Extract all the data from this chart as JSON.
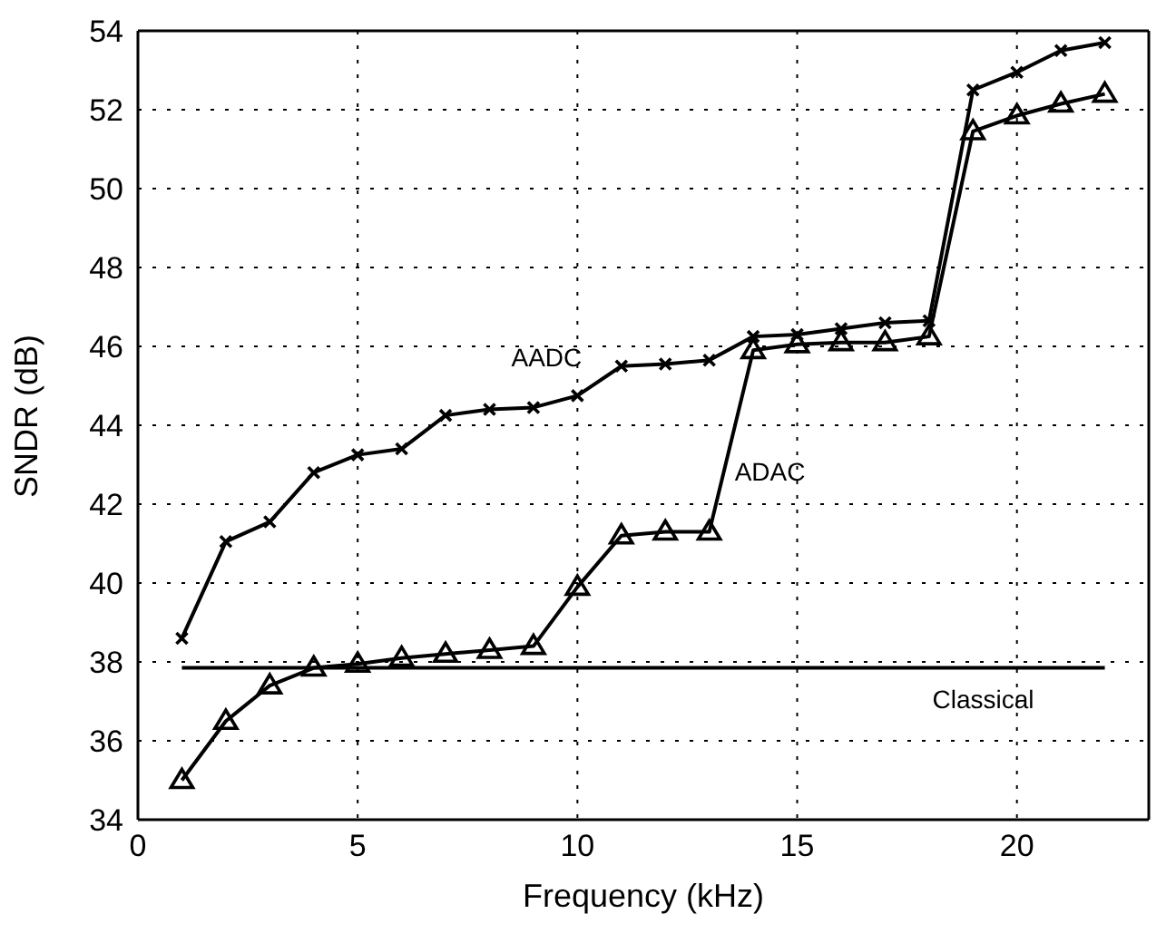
{
  "chart_data": {
    "type": "line",
    "xlabel": "Frequency (kHz)",
    "ylabel": "SNDR (dB)",
    "xlim": [
      0,
      23
    ],
    "xticks": [
      0,
      5,
      10,
      15,
      20
    ],
    "ylim": [
      34,
      54
    ],
    "yticks": [
      34,
      36,
      38,
      40,
      42,
      44,
      46,
      48,
      50,
      52,
      54
    ],
    "grid": true,
    "line_style": "solid",
    "series": [
      {
        "name": "AADC",
        "color": "#000000",
        "marker": "cross",
        "x": [
          1,
          2,
          3,
          4,
          5,
          6,
          7,
          8,
          9,
          10,
          11,
          12,
          13,
          14,
          15,
          16,
          17,
          18,
          19,
          20,
          21,
          22
        ],
        "values": [
          38.6,
          41.05,
          41.55,
          42.8,
          43.25,
          43.4,
          44.25,
          44.4,
          44.45,
          44.75,
          45.5,
          45.55,
          45.65,
          46.25,
          46.3,
          46.45,
          46.6,
          46.65,
          52.5,
          52.95,
          53.5,
          53.7
        ]
      },
      {
        "name": "ADAC",
        "color": "#000000",
        "marker": "triangle",
        "x": [
          1,
          2,
          3,
          4,
          5,
          6,
          7,
          8,
          9,
          10,
          11,
          12,
          13,
          14,
          15,
          16,
          17,
          18,
          19,
          20,
          21,
          22
        ],
        "values": [
          35.0,
          36.5,
          37.4,
          37.85,
          37.95,
          38.1,
          38.2,
          38.3,
          38.4,
          39.9,
          41.2,
          41.3,
          41.3,
          45.9,
          46.05,
          46.1,
          46.1,
          46.25,
          51.45,
          51.85,
          52.15,
          52.4
        ]
      },
      {
        "name": "Classical",
        "color": "#000000",
        "marker": "none",
        "x": [
          1,
          22
        ],
        "values": [
          37.85,
          37.85
        ]
      }
    ]
  }
}
